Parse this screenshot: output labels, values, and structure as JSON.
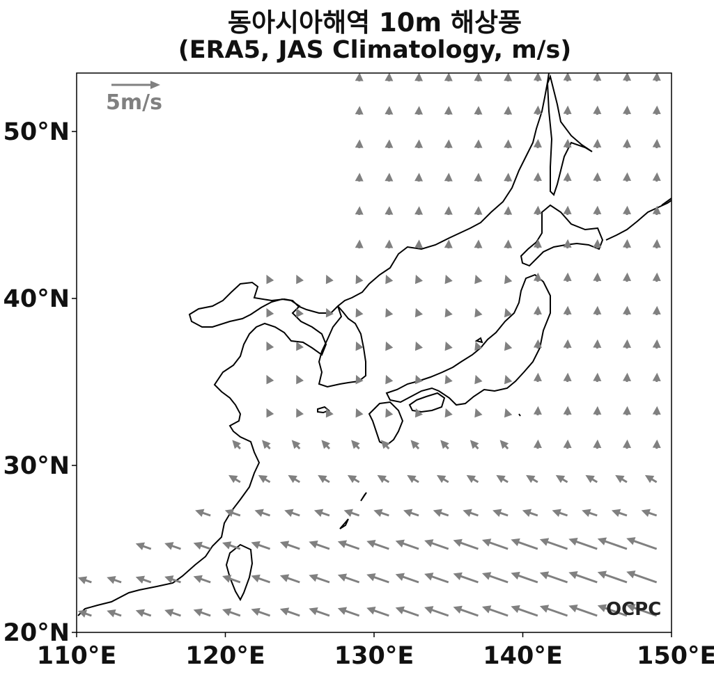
{
  "title": {
    "line1": "동아시아해역 10m 해상풍",
    "line2": "(ERA5, JAS Climatology, m/s)"
  },
  "map": {
    "lon_range": [
      110,
      150
    ],
    "lat_range": [
      20,
      53.5
    ],
    "x_ticks": [
      {
        "value": 110,
        "label": "110°E"
      },
      {
        "value": 120,
        "label": "120°E"
      },
      {
        "value": 130,
        "label": "130°E"
      },
      {
        "value": 140,
        "label": "140°E"
      },
      {
        "value": 150,
        "label": "150°E"
      }
    ],
    "y_ticks": [
      {
        "value": 20,
        "label": "20°N"
      },
      {
        "value": 30,
        "label": "30°N"
      },
      {
        "value": 40,
        "label": "40°N"
      },
      {
        "value": 50,
        "label": "50°N"
      }
    ],
    "reference_vector": {
      "speed_ms": 5,
      "label": "5m/s"
    },
    "logo": "OCPC",
    "colors": {
      "arrow": "#808080",
      "coast": "#000000",
      "frame": "#000000"
    }
  }
}
